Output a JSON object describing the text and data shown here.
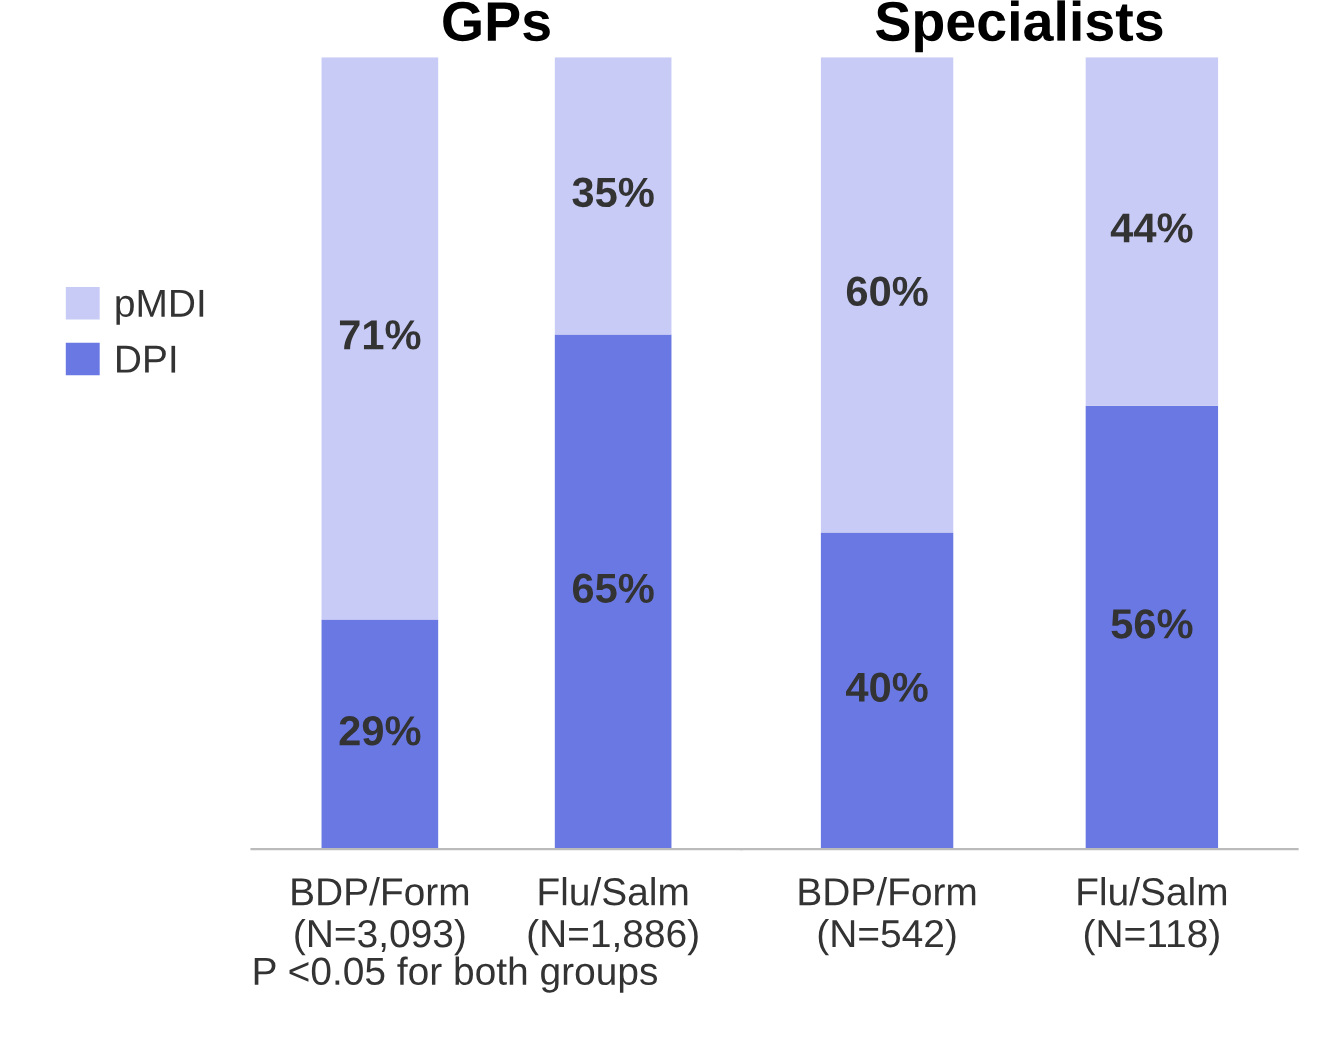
{
  "chart_data": [
    {
      "type": "bar",
      "stacked": true,
      "title": "GPs",
      "categories": [
        "BDP/Form\n(N=3,093)",
        "Flu/Salm\n(N=1,886)"
      ],
      "ylim": [
        0,
        100
      ],
      "tick_labels": "x",
      "legend": "left",
      "series": [
        {
          "name": "DPI",
          "color": "#6a78e3",
          "values": [
            29,
            65
          ],
          "value_labels": [
            "29%",
            "65%"
          ]
        },
        {
          "name": "pMDI",
          "color": "#c8cbf5",
          "values": [
            71,
            35
          ],
          "value_labels": [
            "71%",
            "35%"
          ]
        }
      ],
      "annotations": [
        "P <0.05 for both groups"
      ]
    },
    {
      "type": "bar",
      "stacked": true,
      "title": "Specialists",
      "categories": [
        "BDP/Form\n(N=542)",
        "Flu/Salm\n(N=118)"
      ],
      "ylim": [
        0,
        100
      ],
      "tick_labels": "x",
      "series": [
        {
          "color": "#6a78e3",
          "values": [
            40,
            56
          ],
          "value_labels": [
            "40%",
            "56%"
          ]
        },
        {
          "color": "#c8cbf5",
          "values": [
            60,
            44
          ],
          "value_labels": [
            "60%",
            "44%"
          ]
        }
      ]
    }
  ]
}
